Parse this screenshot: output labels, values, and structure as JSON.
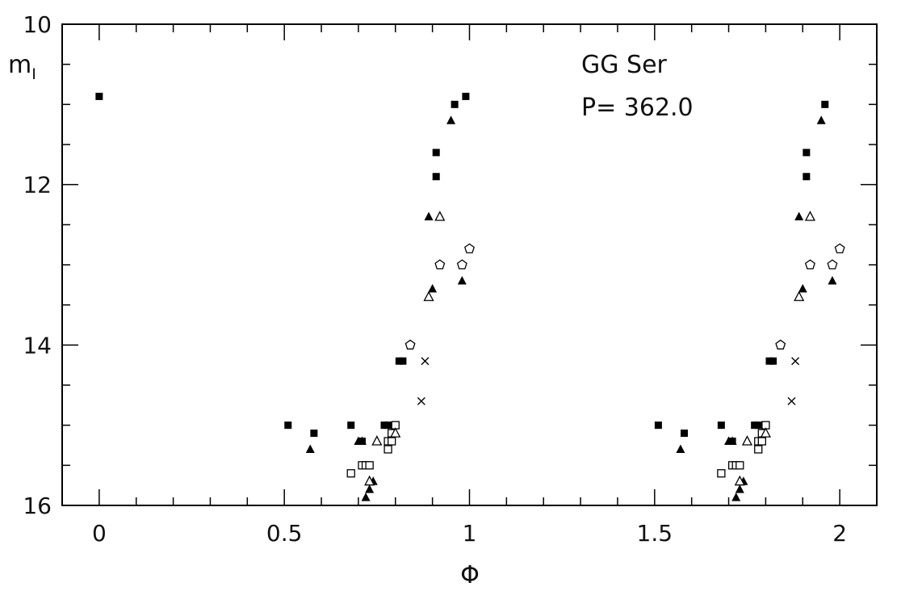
{
  "chart_data": {
    "type": "scatter",
    "title": "",
    "xlabel": "Φ",
    "ylabel": "m",
    "ylabel_sub": "I",
    "xlim": [
      -0.1,
      2.1
    ],
    "ylim": [
      16,
      10
    ],
    "y_inverted": true,
    "grid": false,
    "x_ticks": [
      0,
      0.5,
      1,
      1.5,
      2
    ],
    "x_tick_labels": [
      "0",
      "0.5",
      "1",
      "1.5",
      "2"
    ],
    "y_ticks": [
      10,
      12,
      14,
      16
    ],
    "y_tick_labels": [
      "10",
      "12",
      "14",
      "16"
    ],
    "annotations": [
      "GG Ser",
      "P= 362.0"
    ],
    "series": [
      {
        "marker": "filled-square",
        "points": [
          [
            0.0,
            10.9
          ],
          [
            0.51,
            15.0
          ],
          [
            0.58,
            15.1
          ],
          [
            0.68,
            15.0
          ],
          [
            0.71,
            15.2
          ],
          [
            0.77,
            15.0
          ],
          [
            0.78,
            15.0
          ],
          [
            0.81,
            14.2
          ],
          [
            0.82,
            14.2
          ],
          [
            0.91,
            11.6
          ],
          [
            0.91,
            11.9
          ],
          [
            0.96,
            11.0
          ],
          [
            0.99,
            10.9
          ],
          [
            1.51,
            15.0
          ],
          [
            1.58,
            15.1
          ],
          [
            1.68,
            15.0
          ],
          [
            1.71,
            15.2
          ],
          [
            1.77,
            15.0
          ],
          [
            1.78,
            15.0
          ],
          [
            1.81,
            14.2
          ],
          [
            1.82,
            14.2
          ],
          [
            1.91,
            11.6
          ],
          [
            1.91,
            11.9
          ],
          [
            1.96,
            11.0
          ]
        ]
      },
      {
        "marker": "filled-triangle",
        "points": [
          [
            0.57,
            15.3
          ],
          [
            0.7,
            15.2
          ],
          [
            0.71,
            15.2
          ],
          [
            0.72,
            15.9
          ],
          [
            0.73,
            15.8
          ],
          [
            0.74,
            15.7
          ],
          [
            0.89,
            12.4
          ],
          [
            0.9,
            13.3
          ],
          [
            0.95,
            11.2
          ],
          [
            0.98,
            13.2
          ],
          [
            1.57,
            15.3
          ],
          [
            1.7,
            15.2
          ],
          [
            1.71,
            15.2
          ],
          [
            1.72,
            15.9
          ],
          [
            1.73,
            15.8
          ],
          [
            1.74,
            15.7
          ],
          [
            1.89,
            12.4
          ],
          [
            1.9,
            13.3
          ],
          [
            1.95,
            11.2
          ],
          [
            1.98,
            13.2
          ]
        ]
      },
      {
        "marker": "open-square",
        "points": [
          [
            0.68,
            15.6
          ],
          [
            0.71,
            15.5
          ],
          [
            0.72,
            15.5
          ],
          [
            0.73,
            15.5
          ],
          [
            0.78,
            15.2
          ],
          [
            0.78,
            15.3
          ],
          [
            0.79,
            15.2
          ],
          [
            0.79,
            15.1
          ],
          [
            0.8,
            15.0
          ],
          [
            1.68,
            15.6
          ],
          [
            1.71,
            15.5
          ],
          [
            1.72,
            15.5
          ],
          [
            1.73,
            15.5
          ],
          [
            1.78,
            15.2
          ],
          [
            1.78,
            15.3
          ],
          [
            1.79,
            15.2
          ],
          [
            1.79,
            15.1
          ],
          [
            1.8,
            15.0
          ]
        ]
      },
      {
        "marker": "open-triangle",
        "points": [
          [
            0.73,
            15.7
          ],
          [
            0.75,
            15.2
          ],
          [
            0.8,
            15.1
          ],
          [
            0.89,
            13.4
          ],
          [
            0.92,
            12.4
          ],
          [
            1.73,
            15.7
          ],
          [
            1.75,
            15.2
          ],
          [
            1.8,
            15.1
          ],
          [
            1.89,
            13.4
          ],
          [
            1.92,
            12.4
          ]
        ]
      },
      {
        "marker": "open-pentagon",
        "points": [
          [
            0.84,
            14.0
          ],
          [
            0.92,
            13.0
          ],
          [
            0.98,
            13.0
          ],
          [
            1.0,
            12.8
          ],
          [
            1.84,
            14.0
          ],
          [
            1.92,
            13.0
          ],
          [
            1.98,
            13.0
          ],
          [
            2.0,
            12.8
          ]
        ]
      },
      {
        "marker": "cross",
        "points": [
          [
            0.87,
            14.7
          ],
          [
            0.88,
            14.2
          ],
          [
            1.87,
            14.7
          ],
          [
            1.88,
            14.2
          ]
        ]
      }
    ]
  }
}
